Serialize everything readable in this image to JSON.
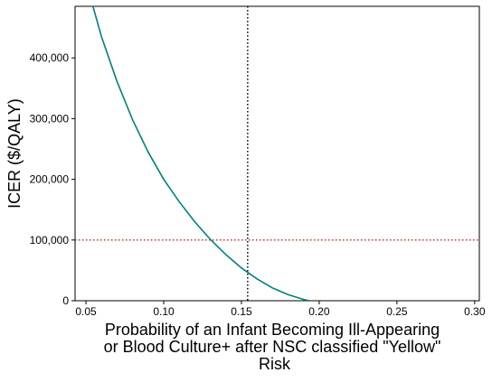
{
  "chart_data": {
    "type": "line",
    "title": "",
    "xlabel_lines": [
      "Probability of an Infant Becoming Ill-Appearing",
      "or Blood Culture+ after NSC classified \"Yellow\"",
      "Risk"
    ],
    "ylabel": "ICER ($/QALY)",
    "xlim": [
      0.043,
      0.303
    ],
    "ylim": [
      0,
      485000
    ],
    "xticks": [
      0.05,
      0.1,
      0.15,
      0.2,
      0.25,
      0.3
    ],
    "xtick_labels": [
      "0.05",
      "0.10",
      "0.15",
      "0.20",
      "0.25",
      "0.30"
    ],
    "yticks": [
      0,
      100000,
      200000,
      300000,
      400000
    ],
    "ytick_labels": [
      "0",
      "100,000",
      "200,000",
      "300,000",
      "400,000"
    ],
    "grid": false,
    "series": [
      {
        "color": "#008080",
        "x": [
          0.0545,
          0.06,
          0.07,
          0.08,
          0.09,
          0.1,
          0.11,
          0.12,
          0.13,
          0.14,
          0.15,
          0.16,
          0.17,
          0.18,
          0.19,
          0.194
        ],
        "y": [
          485000,
          435000,
          361000,
          298000,
          245000,
          200000,
          163000,
          130000,
          101000,
          76000,
          54000,
          36000,
          21000,
          10000,
          2000,
          0
        ]
      }
    ],
    "reference_lines": [
      {
        "orientation": "vertical",
        "value": 0.154,
        "color": "#000000",
        "style": "dotted"
      },
      {
        "orientation": "horizontal",
        "value": 100000,
        "color": "#c0392b",
        "style": "dotted"
      }
    ]
  }
}
